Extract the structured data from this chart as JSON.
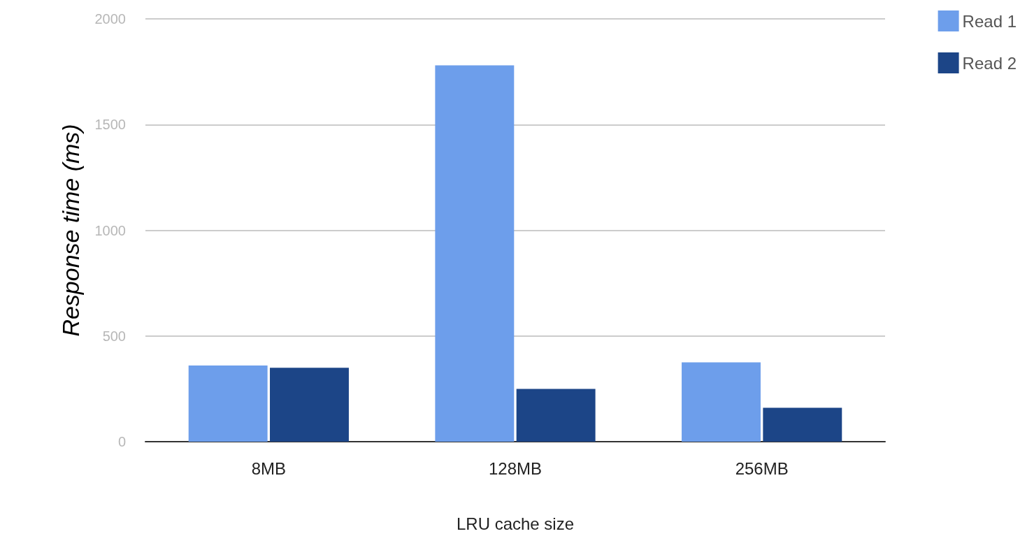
{
  "chart_data": {
    "type": "bar",
    "xlabel": "LRU cache size",
    "ylabel": "Response time (ms)",
    "categories": [
      "8MB",
      "128MB",
      "256MB"
    ],
    "series": [
      {
        "name": "Read 1",
        "color": "#6d9eeb",
        "values": [
          360,
          1780,
          375
        ]
      },
      {
        "name": "Read 2",
        "color": "#1c4587",
        "values": [
          350,
          250,
          160
        ]
      }
    ],
    "ylim": [
      0,
      2000
    ],
    "yticks": [
      0,
      500,
      1000,
      1500,
      2000
    ],
    "grid": "y",
    "legend": "top right"
  }
}
